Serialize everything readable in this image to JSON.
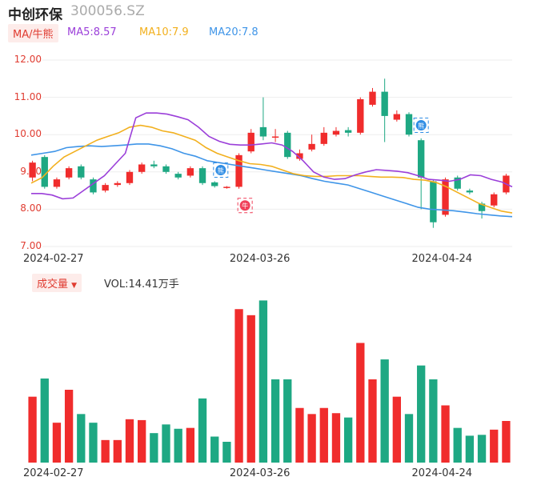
{
  "header": {
    "stock_name": "中创环保",
    "stock_code": "300056.SZ"
  },
  "legend": {
    "ma_tag": "MA/牛熊",
    "ma5": "MA5:8.57",
    "ma10": "MA10:7.9",
    "ma20": "MA20:7.8"
  },
  "volume_panel": {
    "tag": "成交量",
    "vol_label": "VOL:14.41万手"
  },
  "markers": {
    "bear": "熊",
    "bull": "牛"
  },
  "colors": {
    "up": "#f02c2c",
    "down": "#1ea883",
    "ma5": "#9b3fd9",
    "ma10": "#f2b01e",
    "ma20": "#3f95e8"
  },
  "chart_data": [
    {
      "type": "candlestick",
      "ylim": [
        7.0,
        12.0
      ],
      "y_ticks": [
        "12.00",
        "11.00",
        "10.00",
        "9.00",
        "8.00",
        "7.00"
      ],
      "x_ticks": [
        {
          "index": 2,
          "label": "2024-02-27"
        },
        {
          "index": 19,
          "label": "2024-03-26"
        },
        {
          "index": 34,
          "label": "2024-04-24"
        }
      ],
      "candles": [
        {
          "o": 8.85,
          "c": 9.25,
          "h": 9.3,
          "l": 8.75
        },
        {
          "o": 9.4,
          "c": 8.6,
          "h": 9.45,
          "l": 8.55
        },
        {
          "o": 8.6,
          "c": 8.8,
          "h": 8.85,
          "l": 8.55
        },
        {
          "o": 8.85,
          "c": 9.1,
          "h": 9.15,
          "l": 8.8
        },
        {
          "o": 9.15,
          "c": 8.85,
          "h": 9.2,
          "l": 8.8
        },
        {
          "o": 8.8,
          "c": 8.45,
          "h": 8.85,
          "l": 8.4
        },
        {
          "o": 8.5,
          "c": 8.65,
          "h": 8.7,
          "l": 8.45
        },
        {
          "o": 8.65,
          "c": 8.7,
          "h": 8.75,
          "l": 8.6
        },
        {
          "o": 8.7,
          "c": 9.0,
          "h": 9.05,
          "l": 8.65
        },
        {
          "o": 9.0,
          "c": 9.2,
          "h": 9.25,
          "l": 8.95
        },
        {
          "o": 9.2,
          "c": 9.15,
          "h": 9.3,
          "l": 9.1
        },
        {
          "o": 9.15,
          "c": 9.0,
          "h": 9.2,
          "l": 8.95
        },
        {
          "o": 8.95,
          "c": 8.85,
          "h": 9.0,
          "l": 8.8
        },
        {
          "o": 8.9,
          "c": 9.1,
          "h": 9.15,
          "l": 8.85
        },
        {
          "o": 9.1,
          "c": 8.7,
          "h": 9.15,
          "l": 8.65
        },
        {
          "o": 8.72,
          "c": 8.62,
          "h": 8.75,
          "l": 8.58
        },
        {
          "o": 8.57,
          "c": 8.6,
          "h": 8.62,
          "l": 8.55
        },
        {
          "o": 8.6,
          "c": 9.45,
          "h": 9.5,
          "l": 8.55
        },
        {
          "o": 9.55,
          "c": 10.05,
          "h": 10.15,
          "l": 9.5
        },
        {
          "o": 10.2,
          "c": 9.95,
          "h": 11.0,
          "l": 9.85
        },
        {
          "o": 9.95,
          "c": 9.95,
          "h": 10.15,
          "l": 9.8
        },
        {
          "o": 10.05,
          "c": 9.4,
          "h": 10.1,
          "l": 9.35
        },
        {
          "o": 9.35,
          "c": 9.5,
          "h": 9.6,
          "l": 9.3
        },
        {
          "o": 9.6,
          "c": 9.75,
          "h": 10.0,
          "l": 9.55
        },
        {
          "o": 9.75,
          "c": 10.05,
          "h": 10.2,
          "l": 9.7
        },
        {
          "o": 10.0,
          "c": 10.1,
          "h": 10.2,
          "l": 9.95
        },
        {
          "o": 10.12,
          "c": 10.05,
          "h": 10.2,
          "l": 9.95
        },
        {
          "o": 10.05,
          "c": 10.95,
          "h": 11.0,
          "l": 10.0
        },
        {
          "o": 10.8,
          "c": 11.15,
          "h": 11.25,
          "l": 10.75
        },
        {
          "o": 11.15,
          "c": 10.5,
          "h": 11.5,
          "l": 9.8
        },
        {
          "o": 10.4,
          "c": 10.55,
          "h": 10.65,
          "l": 10.35
        },
        {
          "o": 10.55,
          "c": 10.0,
          "h": 10.6,
          "l": 9.95
        },
        {
          "o": 9.85,
          "c": 8.85,
          "h": 9.9,
          "l": 8.0
        },
        {
          "o": 8.75,
          "c": 7.65,
          "h": 8.8,
          "l": 7.5
        },
        {
          "o": 7.85,
          "c": 8.8,
          "h": 8.85,
          "l": 7.8
        },
        {
          "o": 8.85,
          "c": 8.55,
          "h": 8.9,
          "l": 8.5
        },
        {
          "o": 8.5,
          "c": 8.45,
          "h": 8.55,
          "l": 8.4
        },
        {
          "o": 8.15,
          "c": 7.95,
          "h": 8.2,
          "l": 7.75
        },
        {
          "o": 8.1,
          "c": 8.4,
          "h": 8.45,
          "l": 8.05
        },
        {
          "o": 8.45,
          "c": 8.9,
          "h": 8.95,
          "l": 8.4
        }
      ],
      "ma5": [
        8.42,
        8.42,
        8.38,
        8.28,
        8.3,
        8.5,
        8.7,
        8.9,
        9.2,
        9.5,
        10.45,
        10.58,
        10.58,
        10.55,
        10.48,
        10.4,
        10.2,
        9.95,
        9.82,
        9.74,
        9.72,
        9.72,
        9.75,
        9.78,
        9.72,
        9.55,
        9.3,
        9.0,
        8.86,
        8.8,
        8.82,
        8.92,
        9.0,
        9.06,
        9.04,
        9.02,
        8.98,
        8.9,
        8.8,
        8.78,
        8.75,
        8.8,
        8.92,
        8.9,
        8.8,
        8.73,
        8.6
      ],
      "ma10": [
        8.7,
        8.85,
        9.15,
        9.4,
        9.55,
        9.7,
        9.85,
        9.95,
        10.05,
        10.2,
        10.25,
        10.2,
        10.1,
        10.05,
        9.95,
        9.85,
        9.65,
        9.5,
        9.4,
        9.3,
        9.22,
        9.2,
        9.15,
        9.05,
        8.95,
        8.9,
        8.88,
        8.88,
        8.9,
        8.9,
        8.9,
        8.88,
        8.86,
        8.86,
        8.85,
        8.8,
        8.78,
        8.72,
        8.6,
        8.45,
        8.3,
        8.15,
        8.05,
        7.95,
        7.9
      ],
      "ma20": [
        9.45,
        9.5,
        9.55,
        9.65,
        9.68,
        9.7,
        9.68,
        9.7,
        9.72,
        9.75,
        9.75,
        9.7,
        9.62,
        9.5,
        9.42,
        9.3,
        9.25,
        9.2,
        9.15,
        9.1,
        9.05,
        9.0,
        8.95,
        8.9,
        8.82,
        8.75,
        8.7,
        8.65,
        8.55,
        8.45,
        8.35,
        8.25,
        8.15,
        8.05,
        8.0,
        7.98,
        7.96,
        7.92,
        7.88,
        7.85,
        7.82,
        7.8
      ],
      "markers": [
        {
          "index": 15.5,
          "price": 9.05,
          "kind": "bear"
        },
        {
          "index": 17.5,
          "price": 8.1,
          "kind": "bull"
        },
        {
          "index": 32,
          "price": 10.25,
          "kind": "bear"
        }
      ]
    },
    {
      "type": "bar",
      "title": "成交量",
      "values": [
        3.8,
        4.85,
        2.3,
        4.2,
        2.8,
        2.3,
        1.3,
        1.3,
        2.5,
        2.45,
        1.7,
        2.2,
        1.95,
        2.0,
        3.7,
        1.5,
        1.2,
        8.85,
        8.5,
        9.35,
        4.8,
        4.8,
        3.15,
        2.8,
        3.15,
        2.85,
        2.6,
        6.9,
        4.8,
        5.95,
        3.8,
        2.8,
        5.6,
        4.8,
        3.3,
        2.0,
        1.55,
        1.6,
        1.9,
        2.4
      ],
      "up": [
        true,
        false,
        true,
        true,
        false,
        false,
        true,
        true,
        true,
        true,
        false,
        false,
        false,
        true,
        false,
        false,
        false,
        true,
        true,
        false,
        false,
        false,
        true,
        true,
        true,
        true,
        false,
        true,
        true,
        false,
        true,
        false,
        false,
        false,
        true,
        false,
        false,
        false,
        true,
        true
      ]
    }
  ]
}
